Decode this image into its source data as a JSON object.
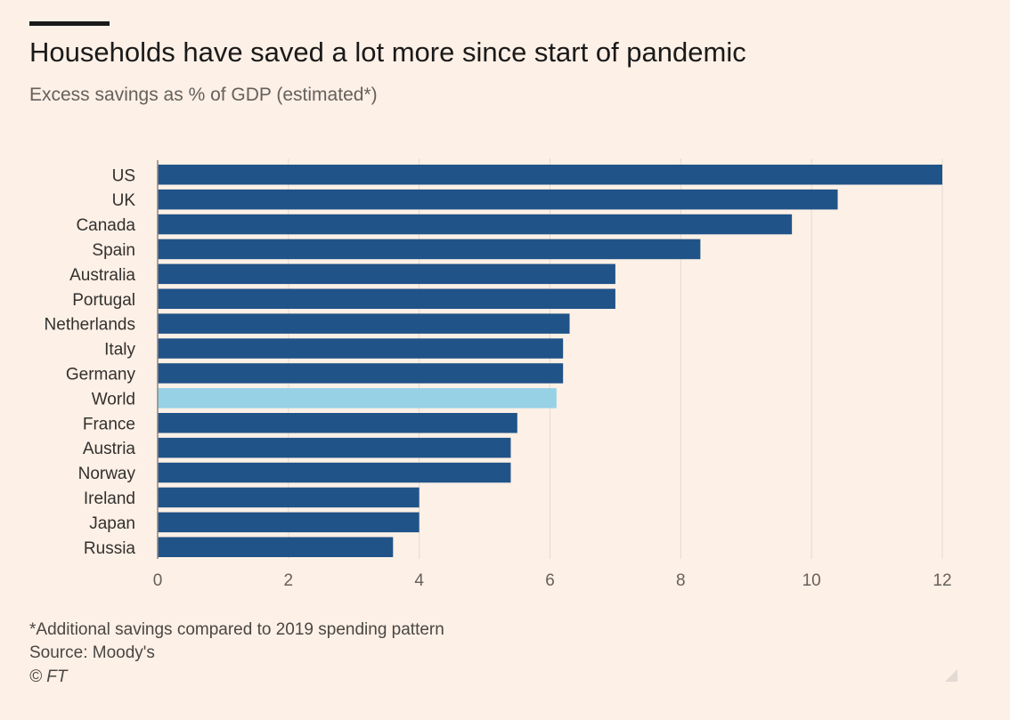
{
  "title": "Households have saved a lot more since start of pandemic",
  "subtitle": "Excess savings as % of GDP (estimated*)",
  "footer": {
    "note": "*Additional savings compared to 2019 spending pattern",
    "source": "Source: Moody's",
    "credit": "© FT"
  },
  "colors": {
    "background": "#fdf0e6",
    "bar": "#205388",
    "highlight": "#96d1e6",
    "gridline": "#e3dbd3",
    "text": "#33302e"
  },
  "chart_data": {
    "type": "bar",
    "orientation": "horizontal",
    "title": "Households have saved a lot more since start of pandemic",
    "subtitle": "Excess savings as % of GDP (estimated*)",
    "categories": [
      "US",
      "UK",
      "Canada",
      "Spain",
      "Australia",
      "Portugal",
      "Netherlands",
      "Italy",
      "Germany",
      "World",
      "France",
      "Austria",
      "Norway",
      "Ireland",
      "Japan",
      "Russia"
    ],
    "values": [
      12.0,
      10.4,
      9.7,
      8.3,
      7.0,
      7.0,
      6.3,
      6.2,
      6.2,
      6.1,
      5.5,
      5.4,
      5.4,
      4.0,
      4.0,
      3.6
    ],
    "highlight": [
      "World"
    ],
    "xlim": [
      0,
      12
    ],
    "xticks": [
      0,
      2,
      4,
      6,
      8,
      10,
      12
    ],
    "grid": true,
    "legend": "none"
  }
}
